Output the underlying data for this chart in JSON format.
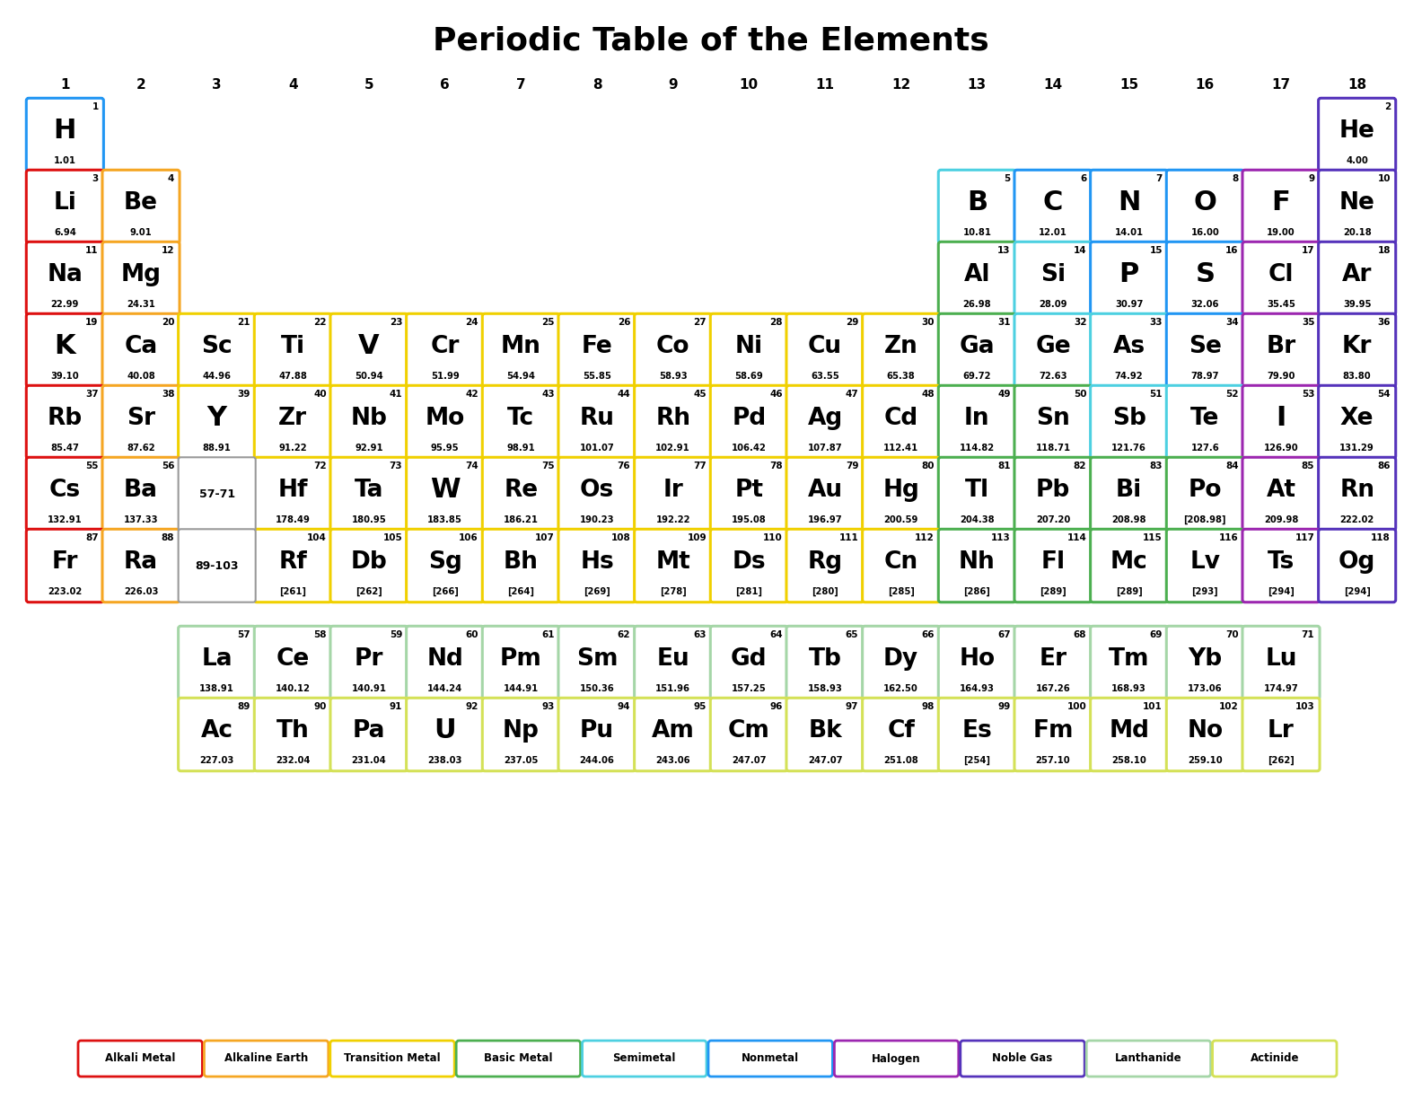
{
  "title": "Periodic Table of the Elements",
  "bg_color": "#ffffff",
  "title_fontsize": 26,
  "colors": {
    "alkali": "#dd1111",
    "alkaline": "#f5a623",
    "transition": "#f0d000",
    "basic_metal": "#4caf50",
    "semimetal": "#4dd0e1",
    "nonmetal": "#2196f3",
    "halogen": "#9c27b0",
    "noble_gas": "#5533bb",
    "lanthanide": "#a5d6a7",
    "actinide": "#d4e157",
    "hydrogen": "#2196f3"
  },
  "elements": [
    {
      "num": 1,
      "sym": "H",
      "mass": "1.01",
      "row": 1,
      "col": 1,
      "type": "hydrogen"
    },
    {
      "num": 2,
      "sym": "He",
      "mass": "4.00",
      "row": 1,
      "col": 18,
      "type": "noble_gas"
    },
    {
      "num": 3,
      "sym": "Li",
      "mass": "6.94",
      "row": 2,
      "col": 1,
      "type": "alkali"
    },
    {
      "num": 4,
      "sym": "Be",
      "mass": "9.01",
      "row": 2,
      "col": 2,
      "type": "alkaline"
    },
    {
      "num": 5,
      "sym": "B",
      "mass": "10.81",
      "row": 2,
      "col": 13,
      "type": "semimetal"
    },
    {
      "num": 6,
      "sym": "C",
      "mass": "12.01",
      "row": 2,
      "col": 14,
      "type": "nonmetal"
    },
    {
      "num": 7,
      "sym": "N",
      "mass": "14.01",
      "row": 2,
      "col": 15,
      "type": "nonmetal"
    },
    {
      "num": 8,
      "sym": "O",
      "mass": "16.00",
      "row": 2,
      "col": 16,
      "type": "nonmetal"
    },
    {
      "num": 9,
      "sym": "F",
      "mass": "19.00",
      "row": 2,
      "col": 17,
      "type": "halogen"
    },
    {
      "num": 10,
      "sym": "Ne",
      "mass": "20.18",
      "row": 2,
      "col": 18,
      "type": "noble_gas"
    },
    {
      "num": 11,
      "sym": "Na",
      "mass": "22.99",
      "row": 3,
      "col": 1,
      "type": "alkali"
    },
    {
      "num": 12,
      "sym": "Mg",
      "mass": "24.31",
      "row": 3,
      "col": 2,
      "type": "alkaline"
    },
    {
      "num": 13,
      "sym": "Al",
      "mass": "26.98",
      "row": 3,
      "col": 13,
      "type": "basic_metal"
    },
    {
      "num": 14,
      "sym": "Si",
      "mass": "28.09",
      "row": 3,
      "col": 14,
      "type": "semimetal"
    },
    {
      "num": 15,
      "sym": "P",
      "mass": "30.97",
      "row": 3,
      "col": 15,
      "type": "nonmetal"
    },
    {
      "num": 16,
      "sym": "S",
      "mass": "32.06",
      "row": 3,
      "col": 16,
      "type": "nonmetal"
    },
    {
      "num": 17,
      "sym": "Cl",
      "mass": "35.45",
      "row": 3,
      "col": 17,
      "type": "halogen"
    },
    {
      "num": 18,
      "sym": "Ar",
      "mass": "39.95",
      "row": 3,
      "col": 18,
      "type": "noble_gas"
    },
    {
      "num": 19,
      "sym": "K",
      "mass": "39.10",
      "row": 4,
      "col": 1,
      "type": "alkali"
    },
    {
      "num": 20,
      "sym": "Ca",
      "mass": "40.08",
      "row": 4,
      "col": 2,
      "type": "alkaline"
    },
    {
      "num": 21,
      "sym": "Sc",
      "mass": "44.96",
      "row": 4,
      "col": 3,
      "type": "transition"
    },
    {
      "num": 22,
      "sym": "Ti",
      "mass": "47.88",
      "row": 4,
      "col": 4,
      "type": "transition"
    },
    {
      "num": 23,
      "sym": "V",
      "mass": "50.94",
      "row": 4,
      "col": 5,
      "type": "transition"
    },
    {
      "num": 24,
      "sym": "Cr",
      "mass": "51.99",
      "row": 4,
      "col": 6,
      "type": "transition"
    },
    {
      "num": 25,
      "sym": "Mn",
      "mass": "54.94",
      "row": 4,
      "col": 7,
      "type": "transition"
    },
    {
      "num": 26,
      "sym": "Fe",
      "mass": "55.85",
      "row": 4,
      "col": 8,
      "type": "transition"
    },
    {
      "num": 27,
      "sym": "Co",
      "mass": "58.93",
      "row": 4,
      "col": 9,
      "type": "transition"
    },
    {
      "num": 28,
      "sym": "Ni",
      "mass": "58.69",
      "row": 4,
      "col": 10,
      "type": "transition"
    },
    {
      "num": 29,
      "sym": "Cu",
      "mass": "63.55",
      "row": 4,
      "col": 11,
      "type": "transition"
    },
    {
      "num": 30,
      "sym": "Zn",
      "mass": "65.38",
      "row": 4,
      "col": 12,
      "type": "transition"
    },
    {
      "num": 31,
      "sym": "Ga",
      "mass": "69.72",
      "row": 4,
      "col": 13,
      "type": "basic_metal"
    },
    {
      "num": 32,
      "sym": "Ge",
      "mass": "72.63",
      "row": 4,
      "col": 14,
      "type": "semimetal"
    },
    {
      "num": 33,
      "sym": "As",
      "mass": "74.92",
      "row": 4,
      "col": 15,
      "type": "semimetal"
    },
    {
      "num": 34,
      "sym": "Se",
      "mass": "78.97",
      "row": 4,
      "col": 16,
      "type": "nonmetal"
    },
    {
      "num": 35,
      "sym": "Br",
      "mass": "79.90",
      "row": 4,
      "col": 17,
      "type": "halogen"
    },
    {
      "num": 36,
      "sym": "Kr",
      "mass": "83.80",
      "row": 4,
      "col": 18,
      "type": "noble_gas"
    },
    {
      "num": 37,
      "sym": "Rb",
      "mass": "85.47",
      "row": 5,
      "col": 1,
      "type": "alkali"
    },
    {
      "num": 38,
      "sym": "Sr",
      "mass": "87.62",
      "row": 5,
      "col": 2,
      "type": "alkaline"
    },
    {
      "num": 39,
      "sym": "Y",
      "mass": "88.91",
      "row": 5,
      "col": 3,
      "type": "transition"
    },
    {
      "num": 40,
      "sym": "Zr",
      "mass": "91.22",
      "row": 5,
      "col": 4,
      "type": "transition"
    },
    {
      "num": 41,
      "sym": "Nb",
      "mass": "92.91",
      "row": 5,
      "col": 5,
      "type": "transition"
    },
    {
      "num": 42,
      "sym": "Mo",
      "mass": "95.95",
      "row": 5,
      "col": 6,
      "type": "transition"
    },
    {
      "num": 43,
      "sym": "Tc",
      "mass": "98.91",
      "row": 5,
      "col": 7,
      "type": "transition"
    },
    {
      "num": 44,
      "sym": "Ru",
      "mass": "101.07",
      "row": 5,
      "col": 8,
      "type": "transition"
    },
    {
      "num": 45,
      "sym": "Rh",
      "mass": "102.91",
      "row": 5,
      "col": 9,
      "type": "transition"
    },
    {
      "num": 46,
      "sym": "Pd",
      "mass": "106.42",
      "row": 5,
      "col": 10,
      "type": "transition"
    },
    {
      "num": 47,
      "sym": "Ag",
      "mass": "107.87",
      "row": 5,
      "col": 11,
      "type": "transition"
    },
    {
      "num": 48,
      "sym": "Cd",
      "mass": "112.41",
      "row": 5,
      "col": 12,
      "type": "transition"
    },
    {
      "num": 49,
      "sym": "In",
      "mass": "114.82",
      "row": 5,
      "col": 13,
      "type": "basic_metal"
    },
    {
      "num": 50,
      "sym": "Sn",
      "mass": "118.71",
      "row": 5,
      "col": 14,
      "type": "basic_metal"
    },
    {
      "num": 51,
      "sym": "Sb",
      "mass": "121.76",
      "row": 5,
      "col": 15,
      "type": "semimetal"
    },
    {
      "num": 52,
      "sym": "Te",
      "mass": "127.6",
      "row": 5,
      "col": 16,
      "type": "semimetal"
    },
    {
      "num": 53,
      "sym": "I",
      "mass": "126.90",
      "row": 5,
      "col": 17,
      "type": "halogen"
    },
    {
      "num": 54,
      "sym": "Xe",
      "mass": "131.29",
      "row": 5,
      "col": 18,
      "type": "noble_gas"
    },
    {
      "num": 55,
      "sym": "Cs",
      "mass": "132.91",
      "row": 6,
      "col": 1,
      "type": "alkali"
    },
    {
      "num": 56,
      "sym": "Ba",
      "mass": "137.33",
      "row": 6,
      "col": 2,
      "type": "alkaline"
    },
    {
      "num": 72,
      "sym": "Hf",
      "mass": "178.49",
      "row": 6,
      "col": 4,
      "type": "transition"
    },
    {
      "num": 73,
      "sym": "Ta",
      "mass": "180.95",
      "row": 6,
      "col": 5,
      "type": "transition"
    },
    {
      "num": 74,
      "sym": "W",
      "mass": "183.85",
      "row": 6,
      "col": 6,
      "type": "transition"
    },
    {
      "num": 75,
      "sym": "Re",
      "mass": "186.21",
      "row": 6,
      "col": 7,
      "type": "transition"
    },
    {
      "num": 76,
      "sym": "Os",
      "mass": "190.23",
      "row": 6,
      "col": 8,
      "type": "transition"
    },
    {
      "num": 77,
      "sym": "Ir",
      "mass": "192.22",
      "row": 6,
      "col": 9,
      "type": "transition"
    },
    {
      "num": 78,
      "sym": "Pt",
      "mass": "195.08",
      "row": 6,
      "col": 10,
      "type": "transition"
    },
    {
      "num": 79,
      "sym": "Au",
      "mass": "196.97",
      "row": 6,
      "col": 11,
      "type": "transition"
    },
    {
      "num": 80,
      "sym": "Hg",
      "mass": "200.59",
      "row": 6,
      "col": 12,
      "type": "transition"
    },
    {
      "num": 81,
      "sym": "Tl",
      "mass": "204.38",
      "row": 6,
      "col": 13,
      "type": "basic_metal"
    },
    {
      "num": 82,
      "sym": "Pb",
      "mass": "207.20",
      "row": 6,
      "col": 14,
      "type": "basic_metal"
    },
    {
      "num": 83,
      "sym": "Bi",
      "mass": "208.98",
      "row": 6,
      "col": 15,
      "type": "basic_metal"
    },
    {
      "num": 84,
      "sym": "Po",
      "mass": "[208.98]",
      "row": 6,
      "col": 16,
      "type": "basic_metal"
    },
    {
      "num": 85,
      "sym": "At",
      "mass": "209.98",
      "row": 6,
      "col": 17,
      "type": "halogen"
    },
    {
      "num": 86,
      "sym": "Rn",
      "mass": "222.02",
      "row": 6,
      "col": 18,
      "type": "noble_gas"
    },
    {
      "num": 87,
      "sym": "Fr",
      "mass": "223.02",
      "row": 7,
      "col": 1,
      "type": "alkali"
    },
    {
      "num": 88,
      "sym": "Ra",
      "mass": "226.03",
      "row": 7,
      "col": 2,
      "type": "alkaline"
    },
    {
      "num": 104,
      "sym": "Rf",
      "mass": "[261]",
      "row": 7,
      "col": 4,
      "type": "transition"
    },
    {
      "num": 105,
      "sym": "Db",
      "mass": "[262]",
      "row": 7,
      "col": 5,
      "type": "transition"
    },
    {
      "num": 106,
      "sym": "Sg",
      "mass": "[266]",
      "row": 7,
      "col": 6,
      "type": "transition"
    },
    {
      "num": 107,
      "sym": "Bh",
      "mass": "[264]",
      "row": 7,
      "col": 7,
      "type": "transition"
    },
    {
      "num": 108,
      "sym": "Hs",
      "mass": "[269]",
      "row": 7,
      "col": 8,
      "type": "transition"
    },
    {
      "num": 109,
      "sym": "Mt",
      "mass": "[278]",
      "row": 7,
      "col": 9,
      "type": "transition"
    },
    {
      "num": 110,
      "sym": "Ds",
      "mass": "[281]",
      "row": 7,
      "col": 10,
      "type": "transition"
    },
    {
      "num": 111,
      "sym": "Rg",
      "mass": "[280]",
      "row": 7,
      "col": 11,
      "type": "transition"
    },
    {
      "num": 112,
      "sym": "Cn",
      "mass": "[285]",
      "row": 7,
      "col": 12,
      "type": "transition"
    },
    {
      "num": 113,
      "sym": "Nh",
      "mass": "[286]",
      "row": 7,
      "col": 13,
      "type": "basic_metal"
    },
    {
      "num": 114,
      "sym": "Fl",
      "mass": "[289]",
      "row": 7,
      "col": 14,
      "type": "basic_metal"
    },
    {
      "num": 115,
      "sym": "Mc",
      "mass": "[289]",
      "row": 7,
      "col": 15,
      "type": "basic_metal"
    },
    {
      "num": 116,
      "sym": "Lv",
      "mass": "[293]",
      "row": 7,
      "col": 16,
      "type": "basic_metal"
    },
    {
      "num": 117,
      "sym": "Ts",
      "mass": "[294]",
      "row": 7,
      "col": 17,
      "type": "halogen"
    },
    {
      "num": 118,
      "sym": "Og",
      "mass": "[294]",
      "row": 7,
      "col": 18,
      "type": "noble_gas"
    },
    {
      "num": 57,
      "sym": "La",
      "mass": "138.91",
      "row": 9,
      "col": 3,
      "type": "lanthanide"
    },
    {
      "num": 58,
      "sym": "Ce",
      "mass": "140.12",
      "row": 9,
      "col": 4,
      "type": "lanthanide"
    },
    {
      "num": 59,
      "sym": "Pr",
      "mass": "140.91",
      "row": 9,
      "col": 5,
      "type": "lanthanide"
    },
    {
      "num": 60,
      "sym": "Nd",
      "mass": "144.24",
      "row": 9,
      "col": 6,
      "type": "lanthanide"
    },
    {
      "num": 61,
      "sym": "Pm",
      "mass": "144.91",
      "row": 9,
      "col": 7,
      "type": "lanthanide"
    },
    {
      "num": 62,
      "sym": "Sm",
      "mass": "150.36",
      "row": 9,
      "col": 8,
      "type": "lanthanide"
    },
    {
      "num": 63,
      "sym": "Eu",
      "mass": "151.96",
      "row": 9,
      "col": 9,
      "type": "lanthanide"
    },
    {
      "num": 64,
      "sym": "Gd",
      "mass": "157.25",
      "row": 9,
      "col": 10,
      "type": "lanthanide"
    },
    {
      "num": 65,
      "sym": "Tb",
      "mass": "158.93",
      "row": 9,
      "col": 11,
      "type": "lanthanide"
    },
    {
      "num": 66,
      "sym": "Dy",
      "mass": "162.50",
      "row": 9,
      "col": 12,
      "type": "lanthanide"
    },
    {
      "num": 67,
      "sym": "Ho",
      "mass": "164.93",
      "row": 9,
      "col": 13,
      "type": "lanthanide"
    },
    {
      "num": 68,
      "sym": "Er",
      "mass": "167.26",
      "row": 9,
      "col": 14,
      "type": "lanthanide"
    },
    {
      "num": 69,
      "sym": "Tm",
      "mass": "168.93",
      "row": 9,
      "col": 15,
      "type": "lanthanide"
    },
    {
      "num": 70,
      "sym": "Yb",
      "mass": "173.06",
      "row": 9,
      "col": 16,
      "type": "lanthanide"
    },
    {
      "num": 71,
      "sym": "Lu",
      "mass": "174.97",
      "row": 9,
      "col": 17,
      "type": "lanthanide"
    },
    {
      "num": 89,
      "sym": "Ac",
      "mass": "227.03",
      "row": 10,
      "col": 3,
      "type": "actinide"
    },
    {
      "num": 90,
      "sym": "Th",
      "mass": "232.04",
      "row": 10,
      "col": 4,
      "type": "actinide"
    },
    {
      "num": 91,
      "sym": "Pa",
      "mass": "231.04",
      "row": 10,
      "col": 5,
      "type": "actinide"
    },
    {
      "num": 92,
      "sym": "U",
      "mass": "238.03",
      "row": 10,
      "col": 6,
      "type": "actinide"
    },
    {
      "num": 93,
      "sym": "Np",
      "mass": "237.05",
      "row": 10,
      "col": 7,
      "type": "actinide"
    },
    {
      "num": 94,
      "sym": "Pu",
      "mass": "244.06",
      "row": 10,
      "col": 8,
      "type": "actinide"
    },
    {
      "num": 95,
      "sym": "Am",
      "mass": "243.06",
      "row": 10,
      "col": 9,
      "type": "actinide"
    },
    {
      "num": 96,
      "sym": "Cm",
      "mass": "247.07",
      "row": 10,
      "col": 10,
      "type": "actinide"
    },
    {
      "num": 97,
      "sym": "Bk",
      "mass": "247.07",
      "row": 10,
      "col": 11,
      "type": "actinide"
    },
    {
      "num": 98,
      "sym": "Cf",
      "mass": "251.08",
      "row": 10,
      "col": 12,
      "type": "actinide"
    },
    {
      "num": 99,
      "sym": "Es",
      "mass": "[254]",
      "row": 10,
      "col": 13,
      "type": "actinide"
    },
    {
      "num": 100,
      "sym": "Fm",
      "mass": "257.10",
      "row": 10,
      "col": 14,
      "type": "actinide"
    },
    {
      "num": 101,
      "sym": "Md",
      "mass": "258.10",
      "row": 10,
      "col": 15,
      "type": "actinide"
    },
    {
      "num": 102,
      "sym": "No",
      "mass": "259.10",
      "row": 10,
      "col": 16,
      "type": "actinide"
    },
    {
      "num": 103,
      "sym": "Lr",
      "mass": "[262]",
      "row": 10,
      "col": 17,
      "type": "actinide"
    }
  ],
  "gap_labels": [
    {
      "text": "57-71",
      "row": 6,
      "col": 3
    },
    {
      "text": "89-103",
      "row": 7,
      "col": 3
    }
  ],
  "group_numbers": [
    1,
    2,
    3,
    4,
    5,
    6,
    7,
    8,
    9,
    10,
    11,
    12,
    13,
    14,
    15,
    16,
    17,
    18
  ],
  "legend": [
    {
      "label": "Alkali Metal",
      "color": "#dd1111"
    },
    {
      "label": "Alkaline Earth",
      "color": "#f5a623"
    },
    {
      "label": "Transition Metal",
      "color": "#f0d000"
    },
    {
      "label": "Basic Metal",
      "color": "#4caf50"
    },
    {
      "label": "Semimetal",
      "color": "#4dd0e1"
    },
    {
      "label": "Nonmetal",
      "color": "#2196f3"
    },
    {
      "label": "Halogen",
      "color": "#9c27b0"
    },
    {
      "label": "Noble Gas",
      "color": "#5533bb"
    },
    {
      "label": "Lanthanide",
      "color": "#a5d6a7"
    },
    {
      "label": "Actinide",
      "color": "#d4e157"
    }
  ]
}
